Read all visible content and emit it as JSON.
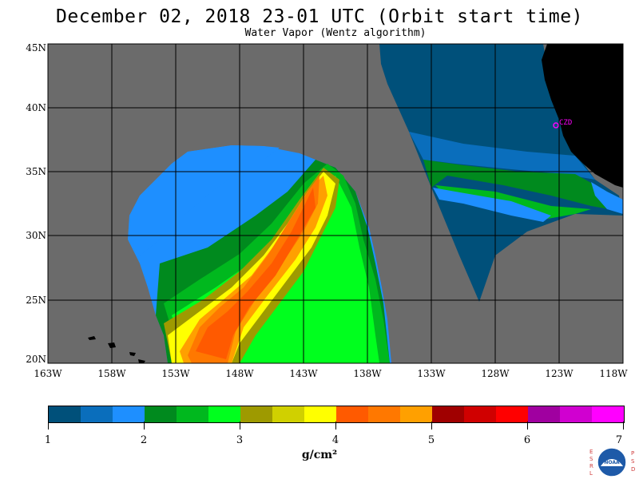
{
  "title": "December 02, 2018  23-01 UTC  (Orbit start time)",
  "subtitle": "Water Vapor (Wentz algorithm)",
  "map": {
    "lat_labels": [
      "45N",
      "40N",
      "35N",
      "30N",
      "25N",
      "20N"
    ],
    "lon_labels": [
      "163W",
      "158W",
      "153W",
      "148W",
      "143W",
      "138W",
      "133W",
      "128W",
      "123W",
      "118W"
    ],
    "lat_range": [
      20,
      45
    ],
    "lon_range": [
      -163,
      -118
    ],
    "station_marker": "CZD",
    "background_color": "#6b6b6b",
    "land_color": "#000000"
  },
  "colorbar": {
    "tick_labels": [
      "1",
      "2",
      "3",
      "4",
      "5",
      "6",
      "7"
    ],
    "units": "g/cm²",
    "colors": [
      "#00507a",
      "#0a6ebc",
      "#1e8fff",
      "#008a1e",
      "#00b81e",
      "#00ff1e",
      "#9e9a00",
      "#d0d000",
      "#ffff00",
      "#ff5a00",
      "#ff7800",
      "#ffa000",
      "#a00000",
      "#d00000",
      "#ff0000",
      "#a000a0",
      "#d000d0",
      "#ff00ff"
    ]
  },
  "logo": {
    "left_letters": [
      "E",
      "S",
      "R",
      "L"
    ],
    "right_letters": [
      "P",
      "S",
      "D"
    ],
    "name": "NOAA"
  }
}
